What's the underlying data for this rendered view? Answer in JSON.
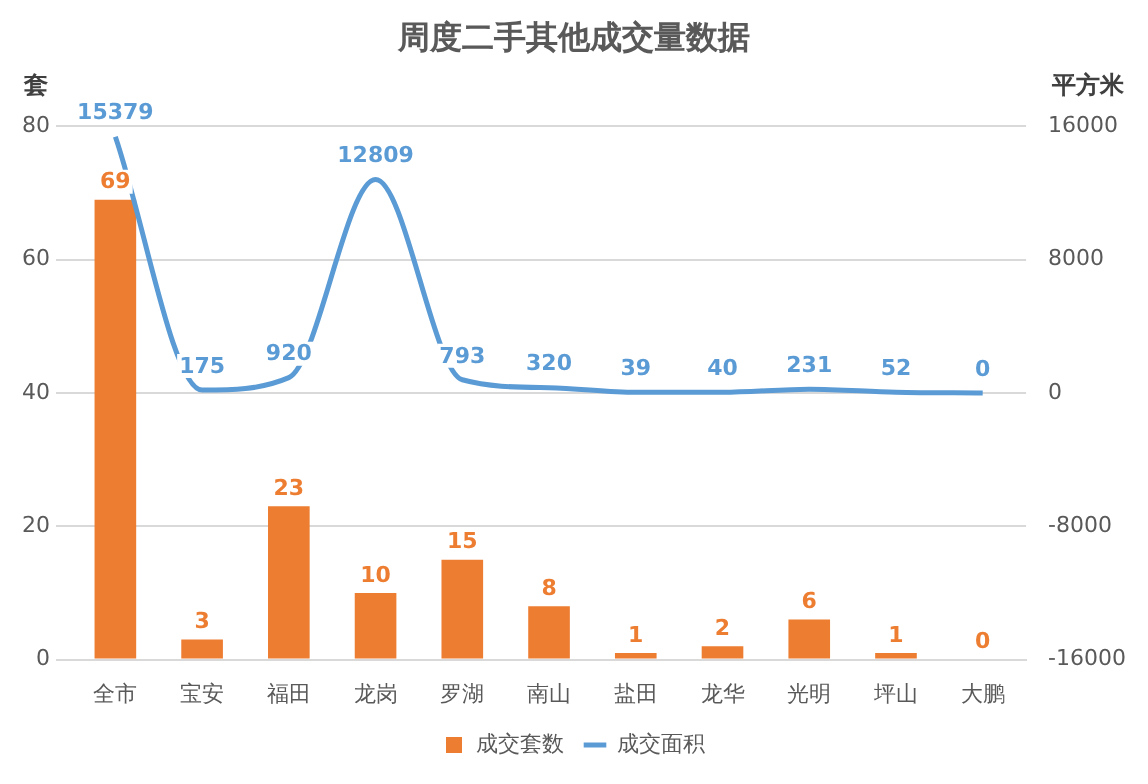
{
  "chart_data": {
    "type": "bar",
    "title": "周度二手其他成交量数据",
    "ylabel": "套",
    "y2label": "平方米",
    "categories": [
      "全市",
      "宝安",
      "福田",
      "龙岗",
      "罗湖",
      "南山",
      "盐田",
      "龙华",
      "光明",
      "坪山",
      "大鹏"
    ],
    "series": [
      {
        "name": "成交套数",
        "color": "#ed7d31",
        "values": [
          69,
          3,
          23,
          10,
          15,
          8,
          1,
          2,
          6,
          1,
          0
        ]
      },
      {
        "name": "成交面积",
        "type": "line",
        "axis": "y2",
        "color": "#5b9bd5",
        "marker": "none",
        "line_style": "solid",
        "values": [
          15379,
          175,
          920,
          12809,
          793,
          320,
          39,
          40,
          231,
          52,
          0
        ]
      }
    ],
    "ylim": [
      0,
      80
    ],
    "yticks": [
      0,
      20,
      40,
      60,
      80
    ],
    "y2lim": [
      -16000,
      16000
    ],
    "y2ticks": [
      -16000,
      -8000,
      0,
      8000,
      16000
    ],
    "grid": "y",
    "legend": "bottom",
    "data_labels": true
  }
}
